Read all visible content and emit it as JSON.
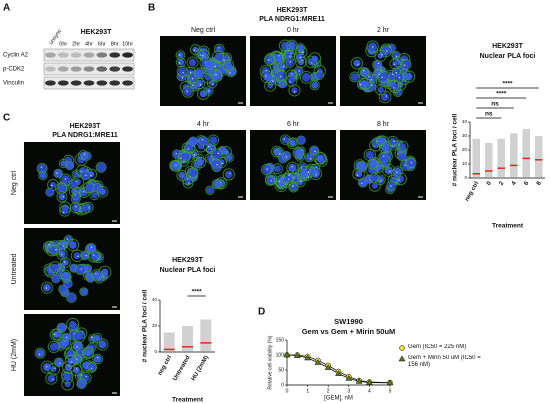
{
  "panel_labels": [
    "A",
    "B",
    "C",
    "D"
  ],
  "blot": {
    "title": "HEK293T",
    "lanes": [
      "unsync",
      "0hr",
      "2hr",
      "4hr",
      "6hr",
      "8hr",
      "10hr"
    ],
    "rows": [
      "Cyclin A2",
      "p-CDK2",
      "Vinculin"
    ]
  },
  "imaging_b": {
    "title": "HEK293T",
    "subtitle": "PLA NDRG1:MRE11",
    "labels": [
      "Neg ctrl",
      "0 hr",
      "2 hr",
      "4 hr",
      "6 hr",
      "8 hr"
    ]
  },
  "imaging_c": {
    "title": "HEK293T",
    "subtitle": "PLA NDRG1:MRE11",
    "labels": [
      "Neg ctrl",
      "Untreated",
      "HU (2mM)"
    ]
  },
  "chart_data": [
    {
      "type": "dotplot",
      "title": "HEK293T",
      "subtitle": "Nuclear PLA foci",
      "x_label": "Treatment",
      "y_label": "# nuclear PLA foci / cell",
      "categories": [
        "neg ctrl",
        "0",
        "2",
        "4",
        "6",
        "8"
      ],
      "values": [
        3,
        5,
        7,
        9,
        14,
        13
      ],
      "max_values": [
        28,
        25,
        28,
        32,
        35,
        30
      ],
      "mean_color": "#e0281e",
      "point_color": "#9a9a9a",
      "ylim": [
        0,
        40
      ],
      "yticks": [
        0,
        10,
        20,
        30,
        40
      ],
      "comparisons": [
        {
          "pair": [
            "neg ctrl",
            "8"
          ],
          "label": "****"
        },
        {
          "pair": [
            "neg ctrl",
            "6"
          ],
          "label": "****"
        },
        {
          "pair": [
            "neg ctrl",
            "4"
          ],
          "label": "ns"
        },
        {
          "pair": [
            "neg ctrl",
            "2"
          ],
          "label": "ns"
        }
      ]
    },
    {
      "type": "dotplot",
      "title": "HEK293T",
      "subtitle": "Nuclear PLA foci",
      "x_label": "Treatment",
      "y_label": "# nuclear PLA foci / cell",
      "categories": [
        "neg ctrl",
        "Untreated",
        "HU (2mM)"
      ],
      "values": [
        2,
        4,
        7
      ],
      "max_values": [
        15,
        20,
        25
      ],
      "mean_color": "#e0281e",
      "point_color": "#9a9a9a",
      "ylim": [
        0,
        40
      ],
      "yticks": [
        0,
        20,
        40
      ],
      "comparisons": [
        {
          "pair": [
            "Untreated",
            "HU (2mM)"
          ],
          "label": "****"
        }
      ]
    },
    {
      "type": "line",
      "title": "SW1990",
      "subtitle": "Gem vs Gem + Mirin 50uM",
      "x_label": "[GEM], nM",
      "y_label": "Relative cell viability (%)",
      "x": [
        0,
        0.5,
        1,
        1.5,
        2,
        2.5,
        3,
        3.5,
        4,
        5
      ],
      "xlim": [
        0,
        5
      ],
      "xticks": [
        0,
        1,
        2,
        3,
        4,
        5
      ],
      "ylim": [
        0,
        150
      ],
      "yticks": [
        0,
        50,
        100,
        150
      ],
      "series": [
        {
          "name": "Gem (IC50 = 225 nM)",
          "color": "#f2e33a",
          "marker": "circle",
          "values": [
            100,
            100,
            95,
            82,
            65,
            45,
            28,
            15,
            10,
            8
          ]
        },
        {
          "name": "Gem + Mirin 50 uM (IC50 = 156 nM)",
          "color": "#5b7a22",
          "marker": "triangle",
          "values": [
            100,
            98,
            90,
            75,
            58,
            38,
            22,
            12,
            8,
            7
          ]
        }
      ]
    }
  ]
}
